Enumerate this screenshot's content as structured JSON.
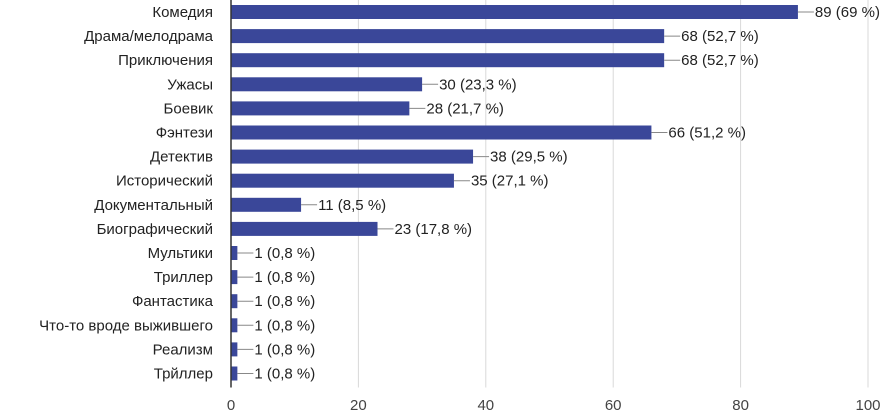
{
  "chart_data": {
    "type": "bar",
    "orientation": "horizontal",
    "categories": [
      "Комедия",
      "Драма/мелодрама",
      "Приключения",
      "Ужасы",
      "Боевик",
      "Фэнтези",
      "Детектив",
      "Исторический",
      "Документальный",
      "Биографический",
      "Мультики",
      "Триллер",
      "Фантастика",
      "Что-то вроде выжившего",
      "Реализм",
      "Трйллер"
    ],
    "values": [
      89,
      68,
      68,
      30,
      28,
      66,
      38,
      35,
      11,
      23,
      1,
      1,
      1,
      1,
      1,
      1
    ],
    "data_labels": [
      "89 (69 %)",
      "68 (52,7 %)",
      "68 (52,7 %)",
      "30 (23,3 %)",
      "28 (21,7 %)",
      "66 (51,2 %)",
      "38 (29,5 %)",
      "35 (27,1 %)",
      "11 (8,5 %)",
      "23 (17,8 %)",
      "1 (0,8 %)",
      "1 (0,8 %)",
      "1 (0,8 %)",
      "1 (0,8 %)",
      "1 (0,8 %)",
      "1 (0,8 %)"
    ],
    "xlim": [
      0,
      100
    ],
    "xticks": [
      0,
      20,
      40,
      60,
      80,
      100
    ],
    "xtick_labels": [
      "0",
      "20",
      "40",
      "60",
      "80",
      "100"
    ],
    "grid": true,
    "bar_color": "#3a4799",
    "grid_color": "#d9d9d9",
    "axis_color": "#333333",
    "leader_color": "#888888"
  }
}
